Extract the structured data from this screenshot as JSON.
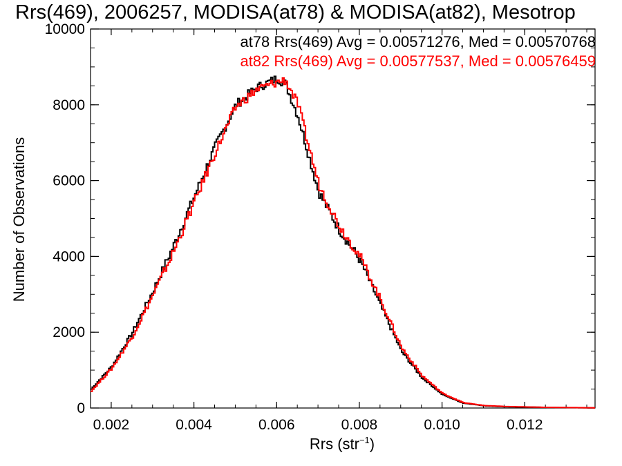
{
  "chart_data": {
    "type": "line",
    "title": "Rrs(469), 2006257, MODISA(at78) & MODISA(at82), Mesotrop",
    "xlabel": {
      "main": "Rrs (str",
      "sup": "−1",
      "close": ")"
    },
    "ylabel": "Number of Observations",
    "xlim": [
      0.0015,
      0.0137
    ],
    "ylim": [
      0,
      10000
    ],
    "xticks": [
      0.002,
      0.004,
      0.006,
      0.008,
      0.01,
      0.012
    ],
    "xtick_labels": [
      "0.002",
      "0.004",
      "0.006",
      "0.008",
      "0.010",
      "0.012"
    ],
    "yticks": [
      0,
      2000,
      4000,
      6000,
      8000,
      10000
    ],
    "ytick_labels": [
      "0",
      "2000",
      "4000",
      "6000",
      "8000",
      "10000"
    ],
    "annotations": [
      "at78 Rrs(469) Avg = 0.00571276, Med = 0.00570768",
      "at82 Rrs(469) Avg = 0.00577537, Med = 0.00576459"
    ],
    "step": true,
    "series": [
      {
        "color": "#000000",
        "x": [
          0.0015,
          0.002,
          0.0025,
          0.003,
          0.0035,
          0.004,
          0.0045,
          0.005,
          0.0055,
          0.006,
          0.0062,
          0.0065,
          0.007,
          0.0075,
          0.008,
          0.0085,
          0.009,
          0.0095,
          0.01,
          0.0105,
          0.011,
          0.0115,
          0.012,
          0.0125,
          0.013,
          0.0137
        ],
        "values": [
          500,
          1100,
          2000,
          3100,
          4300,
          5600,
          6900,
          8000,
          8450,
          8700,
          8550,
          7700,
          5700,
          4700,
          3900,
          2700,
          1500,
          800,
          350,
          130,
          60,
          35,
          25,
          15,
          10,
          5
        ]
      },
      {
        "color": "#ff0000",
        "x": [
          0.0015,
          0.002,
          0.0025,
          0.003,
          0.0035,
          0.004,
          0.0045,
          0.005,
          0.0055,
          0.006,
          0.0062,
          0.0065,
          0.007,
          0.0075,
          0.008,
          0.0085,
          0.009,
          0.0095,
          0.01,
          0.0105,
          0.011,
          0.0115,
          0.012,
          0.0125,
          0.013,
          0.0137
        ],
        "values": [
          450,
          1050,
          1900,
          3000,
          4150,
          5450,
          6750,
          7950,
          8400,
          8600,
          8650,
          8000,
          5900,
          4800,
          4000,
          2850,
          1600,
          850,
          380,
          140,
          65,
          40,
          28,
          18,
          12,
          6
        ]
      }
    ]
  }
}
